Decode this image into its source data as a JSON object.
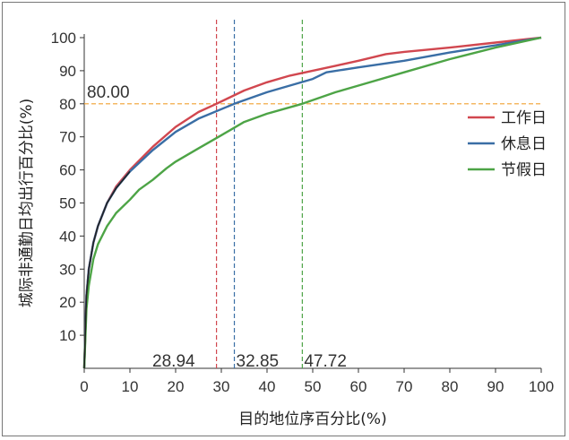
{
  "chart_data": {
    "type": "line",
    "xlabel": "目的地位序百分比(%)",
    "ylabel": "城际非通勤日均出行百分比(%)",
    "xlim": [
      0,
      100
    ],
    "ylim": [
      0,
      100
    ],
    "xticks": [
      "0",
      "10",
      "20",
      "30",
      "40",
      "50",
      "60",
      "70",
      "80",
      "90",
      "100"
    ],
    "yticks": [
      "10",
      "20",
      "30",
      "40",
      "50",
      "60",
      "70",
      "80",
      "90",
      "100"
    ],
    "grid": false,
    "legend_position": "right",
    "series": [
      {
        "name": "工作日",
        "color": "#d1474f",
        "x": [
          0,
          0.5,
          1,
          2,
          3,
          5,
          7,
          10,
          15,
          20,
          25,
          28.94,
          35,
          40,
          45,
          50,
          55,
          60,
          66,
          70,
          80,
          90,
          100
        ],
        "y": [
          0,
          22,
          30,
          38,
          43,
          50,
          55,
          60,
          67,
          73,
          77.5,
          80,
          84,
          86.5,
          88.5,
          90,
          91.5,
          93,
          95,
          95.7,
          97,
          98.5,
          100
        ]
      },
      {
        "name": "休息日",
        "color": "#3a6ea5",
        "x": [
          0,
          0.5,
          1,
          2,
          3,
          5,
          7,
          10,
          15,
          20,
          25,
          32.85,
          40,
          45,
          50,
          53,
          60,
          70,
          80,
          90,
          100
        ],
        "y": [
          0,
          22,
          30,
          38,
          43,
          50,
          54.5,
          59.5,
          66,
          71.5,
          75.5,
          80,
          83.5,
          85.5,
          87.5,
          89.5,
          91,
          93,
          95.5,
          97.7,
          100
        ]
      },
      {
        "name": "节假日",
        "color": "#4da446",
        "x": [
          0,
          0.5,
          1,
          2,
          3,
          5,
          7,
          10,
          12,
          15,
          18,
          20,
          25,
          30,
          35,
          40,
          47.72,
          55,
          60,
          70,
          80,
          90,
          100
        ],
        "y": [
          0,
          18,
          25,
          33,
          37.5,
          43,
          47,
          51,
          54,
          57,
          60.5,
          62.5,
          66.5,
          70.5,
          74.5,
          77,
          80,
          83.5,
          85.5,
          89.5,
          93.5,
          97,
          100
        ]
      }
    ],
    "reference_lines": [
      {
        "axis": "y",
        "value": 80,
        "label": "80.00",
        "color": "#f0a030"
      },
      {
        "axis": "x",
        "value": 28.94,
        "label": "28.94",
        "color": "#d1474f"
      },
      {
        "axis": "x",
        "value": 32.85,
        "label": "32.85",
        "color": "#3a6ea5"
      },
      {
        "axis": "x",
        "value": 47.72,
        "label": "47.72",
        "color": "#4da446"
      }
    ]
  }
}
